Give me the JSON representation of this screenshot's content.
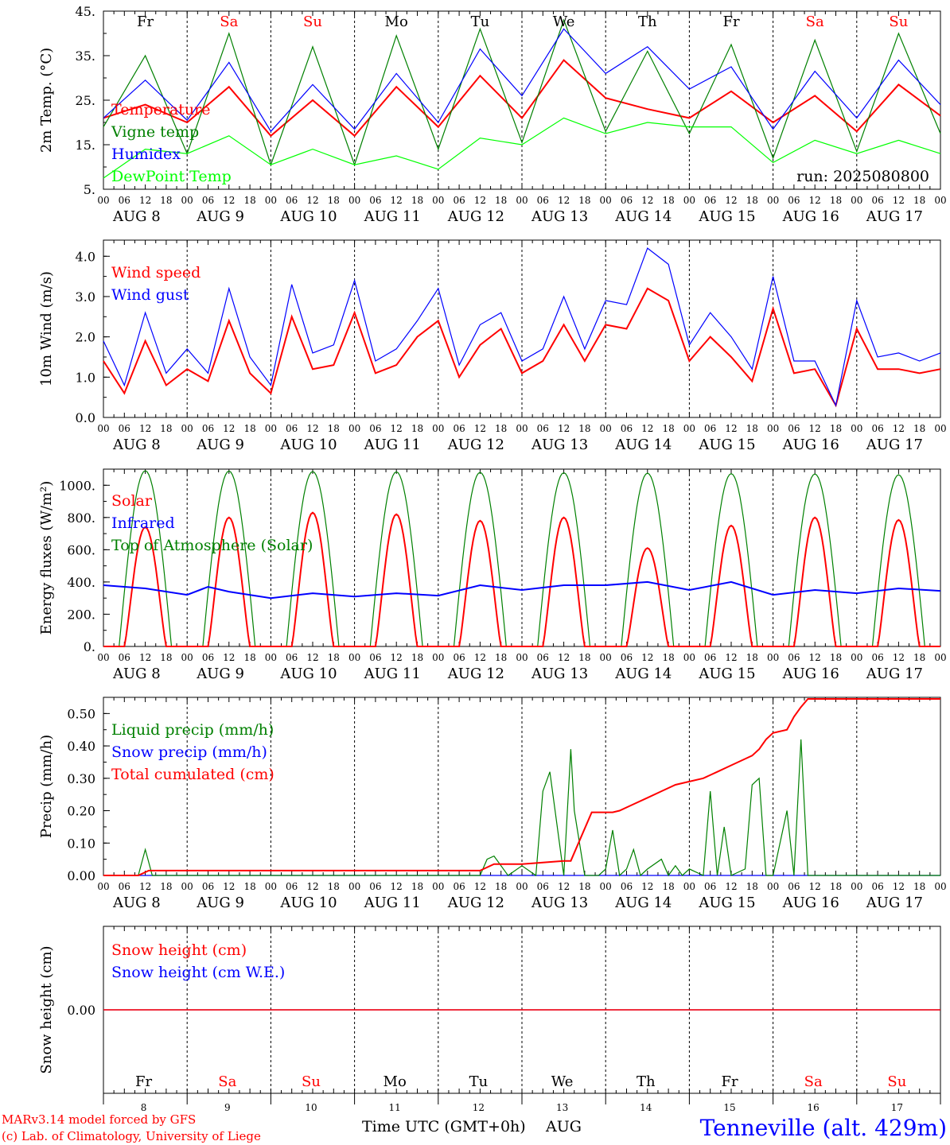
{
  "chart_data": [
    {
      "type": "line",
      "ylabel": "2m Temp. (°C)",
      "ylim": [
        5,
        45
      ],
      "yticks": [
        5,
        15,
        25,
        35,
        45
      ],
      "ytick_labels": [
        "5.",
        "15.",
        "25.",
        "35.",
        "45."
      ],
      "run_label": "run: 2025080800",
      "weekdays": [
        "Fr",
        "Sa",
        "Su",
        "Mo",
        "Tu",
        "We",
        "Th",
        "Fr",
        "Sa",
        "Su"
      ],
      "x_hours": [
        0,
        12,
        24,
        36,
        48,
        60,
        72,
        84,
        96,
        108,
        120,
        132,
        144,
        156,
        168,
        180,
        192,
        204,
        216,
        228,
        240
      ],
      "series": [
        {
          "name": "Temperature",
          "color": "#ff0000",
          "values": [
            21,
            24,
            20,
            28,
            17,
            25,
            17,
            28,
            19,
            30.5,
            21,
            34,
            25.5,
            23,
            21,
            27,
            20,
            26,
            18,
            28.5,
            21.5
          ]
        },
        {
          "name": "Vigne temp",
          "color": "#008000",
          "values": [
            19,
            35,
            13,
            40,
            10.5,
            37,
            10.5,
            39.5,
            14,
            41,
            15.5,
            43,
            18,
            36,
            17.5,
            37.5,
            12,
            38.5,
            13.5,
            40,
            17.5
          ]
        },
        {
          "name": "Humidex",
          "color": "#0000ff",
          "values": [
            21,
            29.5,
            20.5,
            33.5,
            18,
            28.5,
            18.5,
            31,
            20,
            36.5,
            26,
            41,
            31,
            37,
            27.5,
            32.5,
            18.5,
            31.5,
            21,
            34,
            24
          ]
        },
        {
          "name": "DewPoint Temp",
          "color": "#00ff00",
          "values": [
            7.5,
            14,
            13,
            17,
            10.5,
            14,
            10.5,
            12.5,
            9.5,
            16.5,
            15,
            21,
            17.5,
            20,
            19,
            19,
            11,
            16,
            13,
            16,
            13
          ]
        }
      ]
    },
    {
      "type": "line",
      "ylabel": "10m Wind (m/s)",
      "ylim": [
        0,
        4.4
      ],
      "yticks": [
        0,
        1,
        2,
        3,
        4
      ],
      "ytick_labels": [
        "0.0",
        "1.0",
        "2.0",
        "3.0",
        "4.0"
      ],
      "x_hours": [
        0,
        6,
        12,
        18,
        24,
        30,
        36,
        42,
        48,
        54,
        60,
        66,
        72,
        78,
        84,
        90,
        96,
        102,
        108,
        114,
        120,
        126,
        132,
        138,
        144,
        150,
        156,
        162,
        168,
        174,
        180,
        186,
        192,
        198,
        204,
        210,
        216,
        222,
        228,
        234,
        240
      ],
      "series": [
        {
          "name": "Wind speed",
          "color": "#ff0000",
          "values": [
            1.4,
            0.6,
            1.9,
            0.8,
            1.2,
            0.9,
            2.4,
            1.1,
            0.6,
            2.5,
            1.2,
            1.3,
            2.6,
            1.1,
            1.3,
            2,
            2.4,
            1.0,
            1.8,
            2.2,
            1.1,
            1.4,
            2.3,
            1.4,
            2.3,
            2.2,
            3.2,
            2.9,
            1.4,
            2,
            1.5,
            0.9,
            2.7,
            1.1,
            1.2,
            0.3,
            2.2,
            1.2,
            1.2,
            1.1,
            1.2
          ]
        },
        {
          "name": "Wind gust",
          "color": "#0000ff",
          "values": [
            1.9,
            0.8,
            2.6,
            1.1,
            1.7,
            1.1,
            3.2,
            1.5,
            0.8,
            3.3,
            1.6,
            1.8,
            3.4,
            1.4,
            1.7,
            2.4,
            3.2,
            1.3,
            2.3,
            2.6,
            1.4,
            1.7,
            3.0,
            1.7,
            2.9,
            2.8,
            4.2,
            3.8,
            1.8,
            2.6,
            2.0,
            1.2,
            3.5,
            1.4,
            1.4,
            0.3,
            2.9,
            1.5,
            1.6,
            1.4,
            1.6
          ]
        }
      ]
    },
    {
      "type": "line",
      "ylabel": "Energy fluxes (W/m²)",
      "ylim": [
        0,
        1100
      ],
      "yticks": [
        0,
        200,
        400,
        600,
        800,
        1000
      ],
      "ytick_labels": [
        "0.",
        "200.",
        "400.",
        "600.",
        "800.",
        "1000."
      ],
      "solar_peaks": [
        740,
        800,
        830,
        820,
        780,
        800,
        610,
        750,
        800,
        785
      ],
      "toa_peaks": [
        1090,
        1088,
        1085,
        1083,
        1080,
        1078,
        1075,
        1072,
        1070,
        1065
      ],
      "series": [
        {
          "name": "Solar",
          "color": "#ff0000"
        },
        {
          "name": "Infrared",
          "color": "#0000ff",
          "x_hours": [
            0,
            12,
            24,
            30,
            36,
            48,
            60,
            72,
            84,
            96,
            108,
            120,
            132,
            144,
            156,
            168,
            180,
            192,
            204,
            216,
            228,
            240
          ],
          "values": [
            380,
            360,
            320,
            370,
            340,
            300,
            330,
            310,
            330,
            315,
            380,
            350,
            380,
            380,
            400,
            350,
            400,
            320,
            350,
            330,
            360,
            345
          ]
        },
        {
          "name": "Top of Atmosphere (Solar)",
          "color": "#008000"
        }
      ]
    },
    {
      "type": "line",
      "ylabel": "Precip (mm/h)",
      "ylim": [
        0,
        0.55
      ],
      "yticks": [
        0,
        0.1,
        0.2,
        0.3,
        0.4,
        0.5
      ],
      "ytick_labels": [
        "0.00",
        "0.10",
        "0.20",
        "0.30",
        "0.40",
        "0.50"
      ],
      "series": [
        {
          "name": "Liquid precip (mm/h)",
          "color": "#008000",
          "x_hours": [
            0,
            10,
            12,
            14,
            24,
            108,
            110,
            112,
            116,
            120,
            124,
            126,
            128,
            132,
            134,
            135,
            138,
            140,
            142,
            144,
            146,
            148,
            150,
            152,
            154,
            156,
            160,
            162,
            164,
            166,
            168,
            172,
            174,
            176,
            178,
            180,
            184,
            186,
            188,
            190,
            192,
            196,
            198,
            200,
            202,
            204,
            240
          ],
          "values": [
            0,
            0,
            0.08,
            0,
            0,
            0,
            0.05,
            0.06,
            0,
            0.03,
            0,
            0.26,
            0.32,
            0,
            0.39,
            0.2,
            0,
            0,
            0,
            0.02,
            0.14,
            0,
            0.02,
            0.08,
            0,
            0.02,
            0.05,
            0,
            0.03,
            0,
            0.02,
            0,
            0.26,
            0,
            0.15,
            0,
            0.02,
            0.28,
            0.3,
            0,
            0,
            0.2,
            0,
            0.42,
            0,
            0,
            0
          ]
        },
        {
          "name": "Snow precip (mm/h)",
          "color": "#0000ff",
          "x_hours": [
            0,
            240
          ],
          "values": [
            0,
            0
          ]
        },
        {
          "name": "Total cumulated (cm)",
          "color": "#ff0000",
          "x_hours": [
            0,
            10,
            13,
            24,
            108,
            112,
            120,
            132,
            134,
            140,
            144,
            146,
            148,
            152,
            156,
            160,
            164,
            168,
            172,
            176,
            180,
            184,
            186,
            188,
            190,
            192,
            196,
            198,
            200,
            202,
            240
          ],
          "values": [
            0,
            0,
            0.015,
            0.015,
            0.015,
            0.035,
            0.035,
            0.045,
            0.045,
            0.195,
            0.195,
            0.195,
            0.2,
            0.22,
            0.24,
            0.26,
            0.28,
            0.29,
            0.3,
            0.32,
            0.34,
            0.36,
            0.37,
            0.39,
            0.42,
            0.44,
            0.45,
            0.49,
            0.52,
            0.545,
            0.545
          ]
        }
      ]
    },
    {
      "type": "line",
      "ylabel": "Snow height (cm)",
      "ytick_labels": [
        "0.00"
      ],
      "series": [
        {
          "name": "Snow height (cm)",
          "color": "#ff0000",
          "x_hours": [
            0,
            240
          ],
          "values": [
            0,
            0
          ]
        },
        {
          "name": "Snow height (cm W.E.)",
          "color": "#0000ff",
          "x_hours": [
            0,
            240
          ],
          "values": [
            0,
            0
          ]
        }
      ]
    }
  ],
  "x_axis": {
    "hour_labels": [
      "00",
      "06",
      "12",
      "18"
    ],
    "date_labels": [
      "AUG  8",
      "AUG  9",
      "AUG 10",
      "AUG 11",
      "AUG 12",
      "AUG 13",
      "AUG 14",
      "AUG 15",
      "AUG 16",
      "AUG 17"
    ],
    "day_numbers": [
      "8",
      "9",
      "10",
      "11",
      "12",
      "13",
      "14",
      "15",
      "16",
      "17"
    ],
    "weekend_color": "#ff0000",
    "weekday_color": "#000000",
    "xlabel": "Time UTC (GMT+0h)",
    "month": "AUG"
  },
  "footer": {
    "credit_line1": "MARv3.14 model forced by GFS",
    "credit_line2": "(c) Lab. of Climatology, University of Liege",
    "station": "Tenneville (alt. 429m)"
  }
}
